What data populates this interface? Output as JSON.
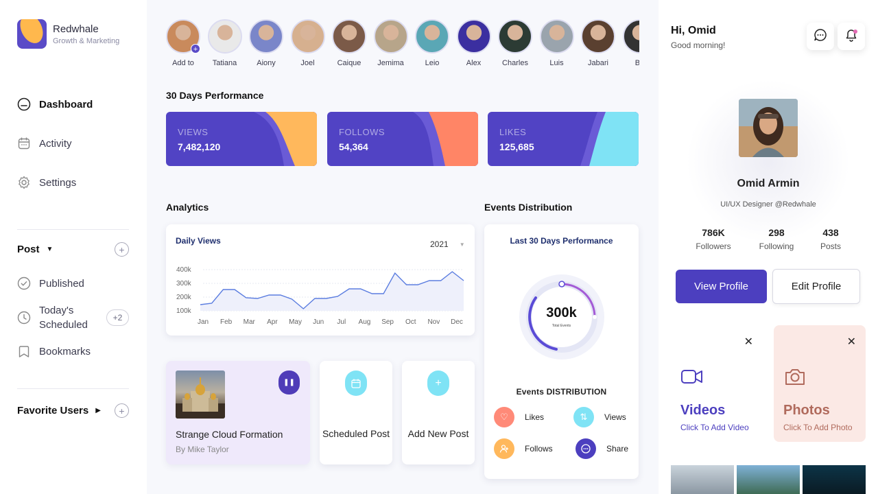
{
  "brand": {
    "name": "Redwhale",
    "tagline": "Growth & Marketing"
  },
  "nav": [
    {
      "label": "Dashboard",
      "icon": "home-icon",
      "active": true
    },
    {
      "label": "Activity",
      "icon": "calendar-icon",
      "active": false
    },
    {
      "label": "Settings",
      "icon": "gear-icon",
      "active": false
    }
  ],
  "post_section": {
    "title": "Post",
    "items": [
      {
        "label": "Published",
        "icon": "check-circle-icon"
      },
      {
        "label": "Today's Scheduled",
        "icon": "clock-icon",
        "badge": "+2"
      },
      {
        "label": "Bookmarks",
        "icon": "bookmark-icon"
      }
    ]
  },
  "favorite_section": {
    "title": "Favorite Users"
  },
  "stories": [
    "Add to",
    "Tatiana",
    "Aiony",
    "Joel",
    "Caique",
    "Jemima",
    "Leio",
    "Alex",
    "Charles",
    "Luis",
    "Jabari",
    "Be"
  ],
  "performance": {
    "title": "30 Days Performance",
    "cards": [
      {
        "label": "VIEWS",
        "value": "7,482,120",
        "accent": "#ffb85c"
      },
      {
        "label": "FOLLOWS",
        "value": "54,364",
        "accent": "#ff8566"
      },
      {
        "label": "LIKES",
        "value": "125,685",
        "accent": "#7fe3f5"
      }
    ]
  },
  "analytics": {
    "title": "Analytics",
    "chart_title": "Daily Views",
    "year": "2021"
  },
  "chart_data": {
    "type": "line",
    "title": "Daily Views",
    "x": [
      "Jan",
      "",
      "Feb",
      "",
      "Mar",
      "",
      "Apr",
      "",
      "May",
      "",
      "Jun",
      "",
      "Jul",
      "",
      "Aug",
      "",
      "Sep",
      "",
      "Oct",
      "",
      "Nov",
      "",
      "Dec",
      ""
    ],
    "categories": [
      "Jan",
      "Feb",
      "Mar",
      "Apr",
      "May",
      "Jun",
      "Jul",
      "Aug",
      "Sep",
      "Oct",
      "Nov",
      "Dec"
    ],
    "values": [
      145,
      155,
      255,
      255,
      195,
      190,
      215,
      215,
      185,
      115,
      190,
      190,
      205,
      260,
      260,
      225,
      225,
      375,
      290,
      290,
      320,
      320,
      385,
      320
    ],
    "ylim": [
      100,
      400
    ],
    "yticks": [
      "400k",
      "300k",
      "200k",
      "100k"
    ],
    "grid": true
  },
  "post_card": {
    "title": "Strange Cloud Formation",
    "author": "By Mike Taylor"
  },
  "mini_cards": [
    {
      "label": "Scheduled Post",
      "icon": "calendar-icon"
    },
    {
      "label": "Add New Post",
      "icon": "plus-icon"
    }
  ],
  "events": {
    "title": "Events Distribution",
    "card_title": "Last 30 Days Performance",
    "center_value": "300k",
    "center_label": "Total Events",
    "section_title": "Events DISTRIBUTION",
    "legend": [
      {
        "label": "Likes",
        "color": "#ff8a78",
        "icon": "heart-icon"
      },
      {
        "label": "Views",
        "color": "#7fe3f5",
        "icon": "arrows-icon"
      },
      {
        "label": "Follows",
        "color": "#ffb85c",
        "icon": "user-plus-icon"
      },
      {
        "label": "Share",
        "color": "#4c3fbf",
        "icon": "chat-icon"
      }
    ]
  },
  "right_panel": {
    "greeting": "Hi, Omid",
    "greeting_sub": "Good morning!",
    "profile": {
      "name": "Omid Armin",
      "role": "UI/UX Designer @Redwhale",
      "stats": [
        {
          "value": "786K",
          "label": "Followers"
        },
        {
          "value": "298",
          "label": "Following"
        },
        {
          "value": "438",
          "label": "Posts"
        }
      ],
      "view_button": "View Profile",
      "edit_button": "Edit Profile"
    },
    "media": [
      {
        "title": "Videos",
        "subtitle": "Click To Add Video",
        "color": "#4c3fbf",
        "bg": "#ffffff"
      },
      {
        "title": "Photos",
        "subtitle": "Click To Add Photo",
        "color": "#b06a5c",
        "bg": "#fbe9e5"
      }
    ]
  }
}
